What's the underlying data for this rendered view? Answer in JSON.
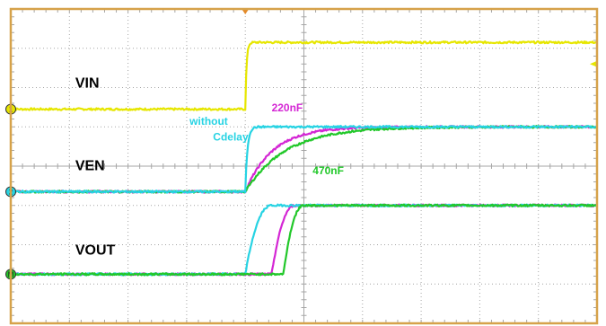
{
  "chart_data": {
    "type": "line",
    "title": "",
    "xlabel": "",
    "ylabel": "",
    "grid": true,
    "grid_divisions": {
      "x": 10,
      "y": 8
    },
    "xlim": [
      -5,
      5
    ],
    "ylim": [
      -4,
      4
    ],
    "trigger_x": -1.0,
    "colors": {
      "ch1": "#e6e600",
      "ch2": "#27d3e3",
      "ch3": "#d426d4",
      "ch4": "#22c82a",
      "frame": "#d6a24a",
      "grid": "#a6a6a6",
      "trigger": "#e48a2a"
    },
    "channels": [
      {
        "id": "1",
        "name": "VIN",
        "color": "#e6e600",
        "ground": 1.45
      },
      {
        "id": "2",
        "name": "VEN",
        "color": "#27d3e3",
        "ground": -0.65
      },
      {
        "id": "M",
        "name": "VOUT",
        "color": "#22c82a",
        "ground": -2.75
      }
    ],
    "series": [
      {
        "color": "#e6e600",
        "low": 1.45,
        "high": 3.15,
        "t0": -1.0,
        "kind": "step",
        "param": 0.12
      },
      {
        "color": "#d426d4",
        "low": -0.65,
        "high": 1.0,
        "t0": -1.0,
        "kind": "exp",
        "param": 0.85
      },
      {
        "color": "#22c82a",
        "low": -0.65,
        "high": 1.0,
        "t0": -1.0,
        "kind": "exp",
        "param": 1.25
      },
      {
        "color": "#27d3e3",
        "low": -0.65,
        "high": 1.0,
        "t0": -1.0,
        "kind": "step",
        "param": 0.2
      },
      {
        "color": "#d426d4",
        "low": -2.75,
        "high": -1.0,
        "t0": -0.55,
        "kind": "smooth",
        "param": 0.4
      },
      {
        "color": "#27d3e3",
        "low": -2.75,
        "high": -1.0,
        "t0": -1.0,
        "kind": "smooth",
        "param": 0.45
      },
      {
        "color": "#22c82a",
        "low": -2.75,
        "high": -1.0,
        "t0": -0.35,
        "kind": "smooth",
        "param": 0.35
      }
    ],
    "annotations": [
      {
        "key": "vin",
        "text": "VIN",
        "x": -3.9,
        "y": 2.0,
        "color": "#000000"
      },
      {
        "key": "ven",
        "text": "VEN",
        "x": -3.9,
        "y": -0.1,
        "color": "#000000"
      },
      {
        "key": "vout",
        "text": "VOUT",
        "x": -3.9,
        "y": -2.25,
        "color": "#000000"
      },
      {
        "key": "c220",
        "text": "220nF",
        "x": -0.55,
        "y": 1.4,
        "color": "#d426d4"
      },
      {
        "key": "c470",
        "text": "470nF",
        "x": 0.15,
        "y": -0.2,
        "color": "#22c82a"
      },
      {
        "key": "wo1",
        "text": "without",
        "x": -1.95,
        "y": 1.05,
        "color": "#27d3e3"
      },
      {
        "key": "wo2",
        "text": "Cdelay",
        "x": -1.55,
        "y": 0.65,
        "color": "#27d3e3"
      }
    ]
  }
}
